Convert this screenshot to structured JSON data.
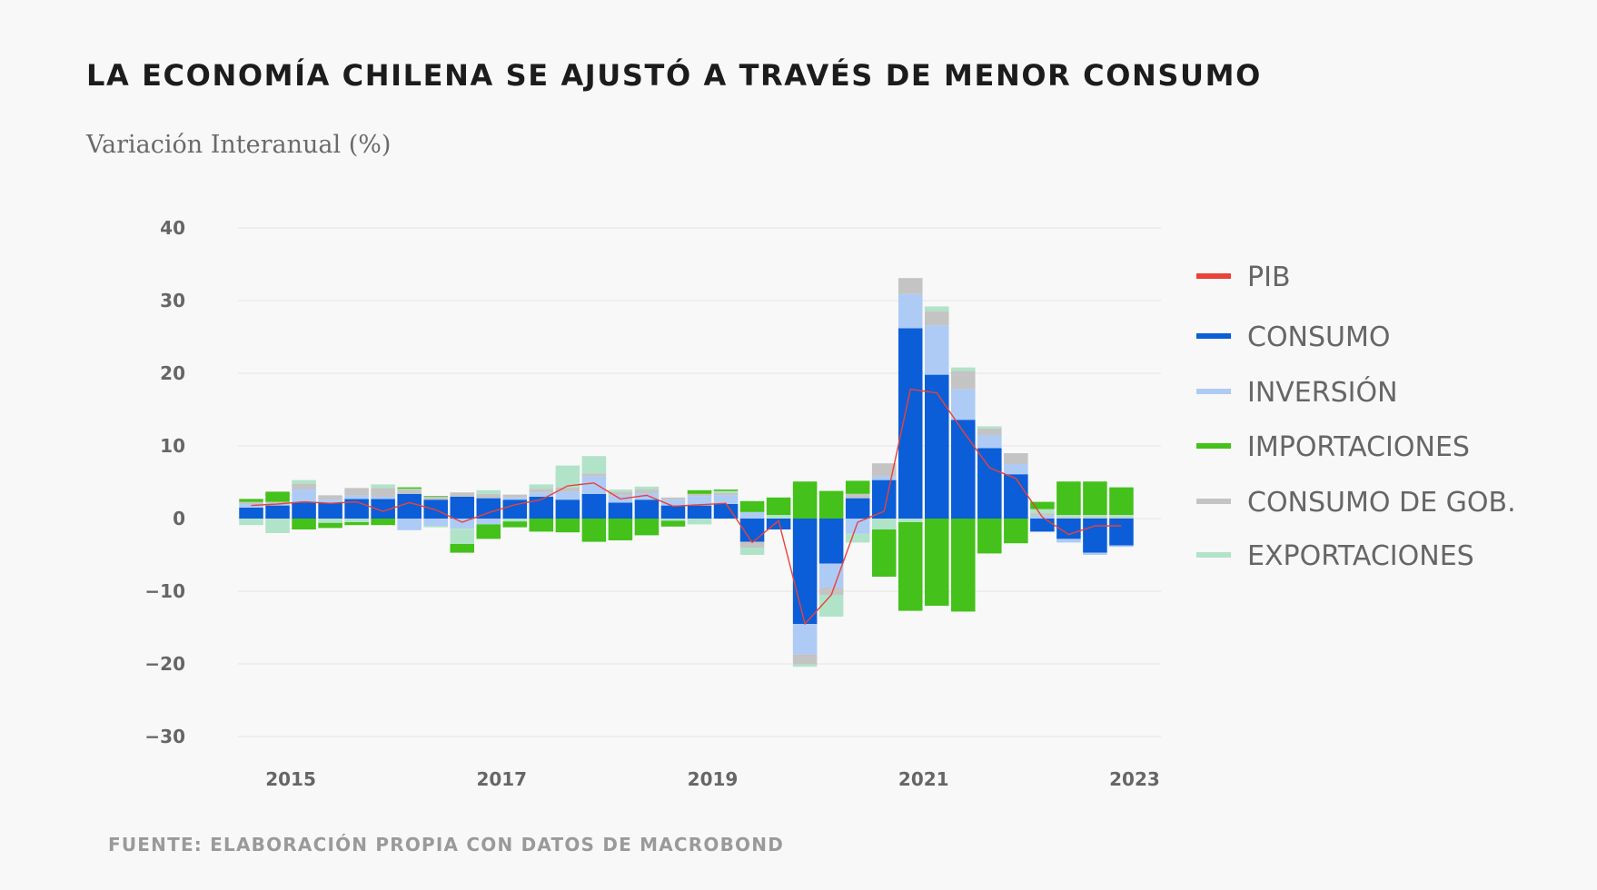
{
  "title": "LA ECONOMÍA CHILENA SE AJUSTÓ A TRAVÉS DE MENOR CONSUMO",
  "subtitle": "Variación Interanual (%)",
  "source": "FUENTE: ELABORACIÓN PROPIA CON DATOS DE MACROBOND",
  "colors": {
    "pib": "#e8423a",
    "consumo": "#0b5ed7",
    "inversion": "#aecbf6",
    "importaciones": "#44c11a",
    "gobierno": "#c4c4c4",
    "exportaciones": "#b1e3c9",
    "grid": "#e3e3e3"
  },
  "chart_data": {
    "type": "bar",
    "stacked": true,
    "title": "LA ECONOMÍA CHILENA SE AJUSTÓ A TRAVÉS DE MENOR CONSUMO",
    "ylabel": "Variación Interanual (%)",
    "xlabel": "",
    "ylim": [
      -30,
      40
    ],
    "yticks": [
      40,
      30,
      20,
      10,
      0,
      -10,
      -20,
      -30
    ],
    "ytick_labels": [
      "40",
      "30",
      "20",
      "10",
      "0",
      "−10",
      "−20",
      "−30"
    ],
    "xticks": [
      {
        "label": "2015",
        "index": 1.5
      },
      {
        "label": "2017",
        "index": 9.5
      },
      {
        "label": "2019",
        "index": 17.5
      },
      {
        "label": "2021",
        "index": 25.5
      },
      {
        "label": "2023",
        "index": 33.5
      }
    ],
    "grid": true,
    "legend_position": "right",
    "legend": [
      {
        "key": "pib",
        "label": "PIB"
      },
      {
        "key": "consumo",
        "label": "CONSUMO"
      },
      {
        "key": "inversion",
        "label": "INVERSIÓN"
      },
      {
        "key": "importaciones",
        "label": "IMPORTACIONES"
      },
      {
        "key": "gobierno",
        "label": "CONSUMO DE GOB."
      },
      {
        "key": "exportaciones",
        "label": "EXPORTACIONES"
      }
    ],
    "stack_order": [
      "consumo",
      "inversion",
      "gobierno",
      "exportaciones",
      "importaciones"
    ],
    "categories": [
      "2014-T3",
      "2014-T4",
      "2015-T1",
      "2015-T2",
      "2015-T3",
      "2015-T4",
      "2016-T1",
      "2016-T2",
      "2016-T3",
      "2016-T4",
      "2017-T1",
      "2017-T2",
      "2017-T3",
      "2017-T4",
      "2018-T1",
      "2018-T2",
      "2018-T3",
      "2018-T4",
      "2019-T1",
      "2019-T2",
      "2019-T3",
      "2019-T4",
      "2020-T1",
      "2020-T2",
      "2020-T3",
      "2020-T4",
      "2021-T1",
      "2021-T2",
      "2021-T3",
      "2021-T4",
      "2022-T1",
      "2022-T2",
      "2022-T3",
      "2022-T4",
      "2023-T1"
    ],
    "series": [
      {
        "key": "consumo",
        "name": "CONSUMO",
        "values": [
          1.5,
          1.8,
          2.2,
          2.2,
          2.7,
          2.7,
          3.4,
          2.6,
          3.0,
          2.8,
          2.6,
          3.0,
          2.6,
          3.4,
          2.2,
          2.6,
          1.8,
          1.8,
          2.0,
          -3.2,
          -1.5,
          -14.5,
          -6.2,
          2.8,
          5.3,
          26.2,
          19.8,
          13.6,
          9.7,
          6.1,
          -1.8,
          -2.8,
          -4.7,
          -3.7,
          0
        ]
      },
      {
        "key": "inversion",
        "name": "INVERSIÓN",
        "values": [
          0.5,
          0.3,
          1.8,
          0.4,
          0.5,
          0.3,
          -1.6,
          -1.0,
          -1.4,
          -0.8,
          0.3,
          0.6,
          1.1,
          2.4,
          1.0,
          0.9,
          0.8,
          1.3,
          1.2,
          0.9,
          0,
          -4.2,
          -3.3,
          -2.1,
          0.5,
          4.7,
          6.8,
          4.2,
          1.8,
          1.4,
          0.4,
          -0.5,
          -0.3,
          -0.2,
          0
        ]
      },
      {
        "key": "gobierno",
        "name": "CONSUMO DE GOB.",
        "values": [
          0.3,
          0.2,
          0.8,
          0.6,
          1.0,
          1.2,
          0.6,
          0.4,
          0.6,
          0.6,
          0.4,
          0.5,
          0.6,
          0.4,
          0.5,
          0.5,
          0.3,
          0.3,
          0.3,
          -0.8,
          0,
          -1.4,
          -1.0,
          0.6,
          1.8,
          2.2,
          1.9,
          2.5,
          0.9,
          1.5,
          0.3,
          0.2,
          0.2,
          0.2,
          0
        ]
      },
      {
        "key": "exportaciones",
        "name": "EXPORTACIONES",
        "values": [
          -0.9,
          -2.0,
          0.5,
          -0.6,
          -0.5,
          0.5,
          0.1,
          -0.2,
          -2.1,
          0.5,
          -0.4,
          0.6,
          3.0,
          2.4,
          0.3,
          0.4,
          -0.3,
          -0.8,
          0.3,
          -1.0,
          0.5,
          -0.3,
          -3.0,
          -1.2,
          -1.5,
          -0.5,
          0.7,
          0.5,
          0.3,
          0,
          0.6,
          0.3,
          0.3,
          0.3,
          0
        ]
      },
      {
        "key": "importaciones",
        "name": "IMPORTACIONES",
        "values": [
          0.4,
          1.4,
          -1.5,
          -0.7,
          -0.4,
          -0.9,
          0.2,
          0.1,
          -1.2,
          -2.0,
          -0.8,
          -1.8,
          -1.9,
          -3.2,
          -3.0,
          -2.3,
          -0.8,
          0.5,
          0.2,
          1.5,
          2.4,
          5.1,
          3.8,
          1.8,
          -6.5,
          -12.2,
          -12.0,
          -12.8,
          -4.8,
          -3.4,
          1.0,
          4.6,
          4.6,
          3.8,
          0
        ]
      },
      {
        "key": "pib",
        "name": "PIB",
        "type": "line",
        "values": [
          1.8,
          2.0,
          2.3,
          2.1,
          2.3,
          1.0,
          2.2,
          1.2,
          -0.5,
          0.8,
          1.9,
          2.6,
          4.5,
          4.9,
          2.7,
          3.2,
          1.7,
          1.9,
          2.1,
          -3.3,
          -0.3,
          -14.5,
          -10.5,
          -0.5,
          1.0,
          17.8,
          17.3,
          12.0,
          7.0,
          5.5,
          0.2,
          -2.2,
          -1.0,
          -1.0,
          null
        ]
      }
    ]
  }
}
